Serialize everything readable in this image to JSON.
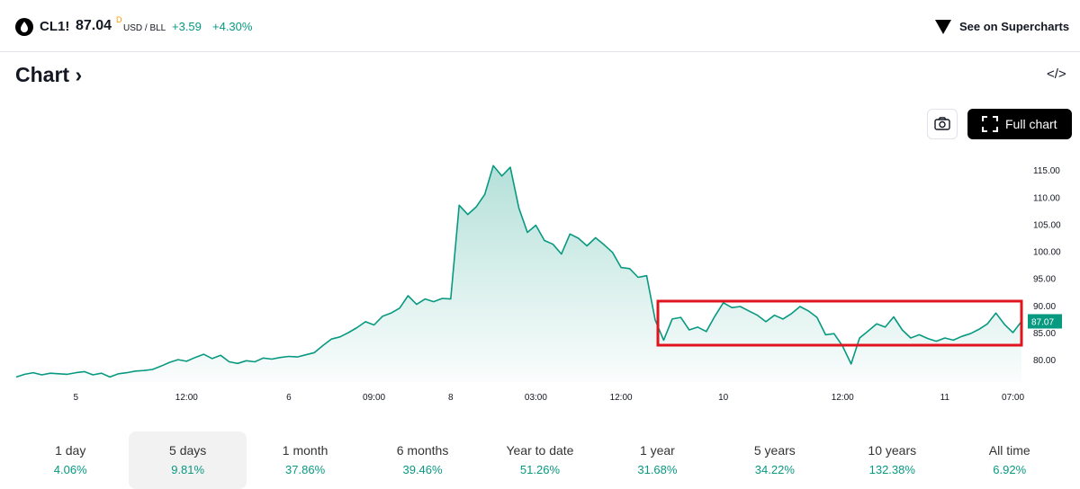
{
  "header": {
    "symbol": "CL1!",
    "price": "87.04",
    "price_flag": "D",
    "unit": "USD / BLL",
    "change": "+3.59",
    "change_pct": "+4.30%",
    "link": "See on Supercharts"
  },
  "section": {
    "title": "Chart",
    "full_chart": "Full chart"
  },
  "tabs": [
    {
      "label": "1 day",
      "value": "4.06%"
    },
    {
      "label": "5 days",
      "value": "9.81%",
      "selected": true
    },
    {
      "label": "1 month",
      "value": "37.86%"
    },
    {
      "label": "6 months",
      "value": "39.46%"
    },
    {
      "label": "Year to date",
      "value": "51.26%"
    },
    {
      "label": "1 year",
      "value": "31.68%"
    },
    {
      "label": "5 years",
      "value": "34.22%"
    },
    {
      "label": "10 years",
      "value": "132.38%"
    },
    {
      "label": "All time",
      "value": "6.92%"
    }
  ],
  "chart_data": {
    "type": "area",
    "color": "#089981",
    "categories": [
      null,
      null,
      null,
      null,
      null,
      null,
      null,
      "5",
      null,
      null,
      null,
      null,
      null,
      null,
      null,
      null,
      null,
      null,
      null,
      null,
      "12:00",
      null,
      null,
      null,
      null,
      null,
      null,
      null,
      null,
      null,
      null,
      null,
      "6",
      null,
      null,
      null,
      null,
      null,
      null,
      null,
      null,
      null,
      "09:00",
      null,
      null,
      null,
      null,
      null,
      null,
      null,
      null,
      "8",
      null,
      null,
      null,
      null,
      null,
      null,
      null,
      null,
      null,
      "03:00",
      null,
      null,
      null,
      null,
      null,
      null,
      null,
      null,
      null,
      "12:00",
      null,
      null,
      null,
      null,
      null,
      null,
      null,
      null,
      null,
      null,
      null,
      "10",
      null,
      null,
      null,
      null,
      null,
      null,
      null,
      null,
      null,
      null,
      null,
      null,
      null,
      "12:00",
      null,
      null,
      null,
      null,
      null,
      null,
      null,
      null,
      null,
      null,
      null,
      "11",
      null,
      null,
      null,
      null,
      null,
      null,
      null,
      "07:00",
      null
    ],
    "values": [
      76.8,
      77.3,
      77.6,
      77.2,
      77.5,
      77.4,
      77.3,
      77.6,
      77.8,
      77.2,
      77.5,
      76.8,
      77.4,
      77.6,
      77.9,
      78.0,
      78.2,
      78.8,
      79.5,
      80.0,
      79.7,
      80.4,
      81.0,
      80.2,
      80.8,
      79.6,
      79.3,
      79.8,
      79.6,
      80.3,
      80.1,
      80.4,
      80.6,
      80.5,
      80.9,
      81.3,
      82.6,
      83.8,
      84.2,
      85.0,
      85.9,
      87.0,
      86.4,
      88.0,
      88.6,
      89.5,
      91.8,
      90.2,
      91.2,
      90.7,
      91.3,
      91.2,
      108.5,
      106.8,
      108.2,
      110.5,
      115.8,
      113.9,
      115.5,
      108.0,
      103.5,
      104.8,
      102.0,
      101.3,
      99.5,
      103.2,
      102.4,
      101.0,
      102.5,
      101.2,
      99.8,
      97.0,
      96.8,
      95.2,
      95.5,
      87.3,
      83.6,
      87.5,
      87.8,
      85.5,
      86.0,
      85.2,
      88.0,
      90.5,
      89.6,
      89.8,
      89.0,
      88.2,
      87.0,
      88.2,
      87.5,
      88.5,
      89.8,
      89.0,
      87.8,
      84.6,
      84.8,
      82.5,
      79.2,
      84.0,
      85.3,
      86.6,
      86.0,
      87.9,
      85.5,
      84.0,
      84.6,
      83.9,
      83.4,
      84.0,
      83.6,
      84.3,
      84.8,
      85.6,
      86.6,
      88.6,
      86.5,
      85.0,
      87.07
    ],
    "last_value": 87.07,
    "ylim": [
      76.7,
      120
    ],
    "yticks": [
      {
        "value": 80,
        "label": "80.00"
      },
      {
        "value": 85,
        "label": "85.00"
      },
      {
        "value": 90,
        "label": "90.00"
      },
      {
        "value": 95,
        "label": "95.00"
      },
      {
        "value": 100,
        "label": "100.00"
      },
      {
        "value": 105,
        "label": "105.00"
      },
      {
        "value": 110,
        "label": "110.00"
      },
      {
        "value": 115,
        "label": "115.00"
      }
    ]
  }
}
